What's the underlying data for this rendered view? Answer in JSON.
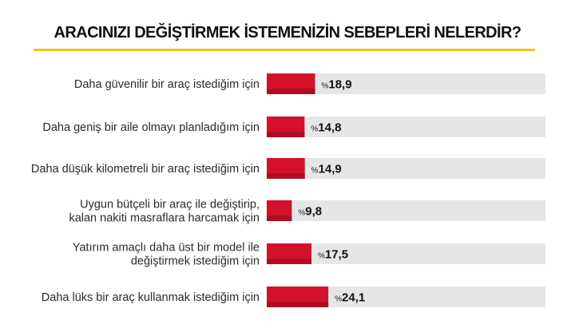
{
  "chart_data": {
    "type": "bar",
    "orientation": "horizontal",
    "title": "ARACINIZI DEĞİŞTİRMEK İSTEMENİZİN SEBEPLERİ NELERDİR?",
    "value_prefix": "%",
    "categories": [
      [
        "Daha güvenilir bir araç istediğim için"
      ],
      [
        "Daha geniş bir aile olmayı planladığım için"
      ],
      [
        "Daha düşük kilometreli bir araç istediğim için"
      ],
      [
        "Uygun bütçeli bir araç ile değiştirip,",
        "kalan nakiti masraflara harcamak için"
      ],
      [
        "Yatırım amaçlı daha üst bir model ile",
        "değiştirmek istediğim için"
      ],
      [
        "Daha lüks bir araç kullanmak istediğim için"
      ]
    ],
    "values": [
      18.9,
      14.8,
      14.9,
      9.8,
      17.5,
      24.1
    ],
    "value_labels": [
      "18,9",
      "14,8",
      "14,9",
      "9,8",
      "17,5",
      "24,1"
    ],
    "xlim": [
      0,
      100
    ],
    "colors": {
      "bar": "#d4112a",
      "bar_shade": "#b00c21",
      "track": "#e6e6e6",
      "title_rule": "#f2c21a"
    },
    "legend": "none",
    "grid": false
  }
}
